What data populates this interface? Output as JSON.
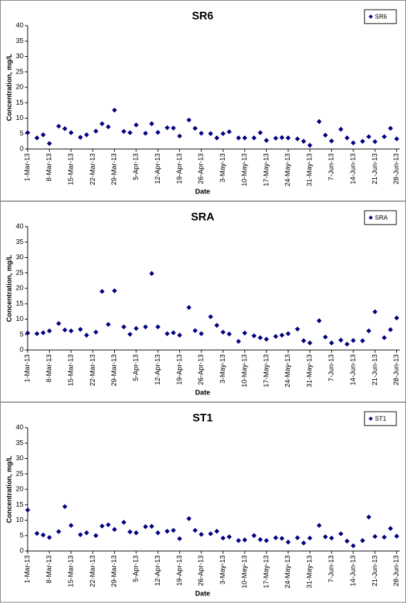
{
  "chart_data": [
    {
      "type": "scatter",
      "title": "SR6",
      "x_label": "Date",
      "y_label": "Concentration, mg/L",
      "legend": "top-right",
      "x": [
        "1-Mar-13",
        "4-Mar-13",
        "6-Mar-13",
        "8-Mar-13",
        "11-Mar-13",
        "13-Mar-13",
        "15-Mar-13",
        "18-Mar-13",
        "20-Mar-13",
        "23-Mar-13",
        "25-Mar-13",
        "27-Mar-13",
        "29-Mar-13",
        "1-Apr-13",
        "3-Apr-13",
        "5-Apr-13",
        "8-Apr-13",
        "10-Apr-13",
        "12-Apr-13",
        "15-Apr-13",
        "17-Apr-13",
        "19-Apr-13",
        "22-Apr-13",
        "24-Apr-13",
        "26-Apr-13",
        "29-Apr-13",
        "1-May-13",
        "3-May-13",
        "5-May-13",
        "8-May-13",
        "10-May-13",
        "13-May-13",
        "15-May-13",
        "17-May-13",
        "20-May-13",
        "22-May-13",
        "24-May-13",
        "27-May-13",
        "29-May-13",
        "31-May-13",
        "3-Jun-13",
        "5-Jun-13",
        "7-Jun-13",
        "10-Jun-13",
        "12-Jun-13",
        "14-Jun-13",
        "17-Jun-13",
        "19-Jun-13",
        "21-Jun-13",
        "24-Jun-13",
        "26-Jun-13",
        "28-Jun-13"
      ],
      "series": [
        {
          "name": "SR6",
          "color": "#000080",
          "values": [
            5.3,
            3.6,
            4.6,
            1.8,
            7.4,
            6.6,
            5.3,
            3.8,
            4.6,
            5.8,
            8.2,
            7.2,
            12.6,
            5.7,
            5.3,
            7.8,
            5.1,
            8.2,
            5.4,
            6.9,
            6.8,
            4.2,
            9.4,
            6.7,
            5.1,
            5.0,
            3.6,
            5.0,
            5.6,
            3.6,
            3.6,
            3.6,
            5.3,
            2.8,
            3.5,
            3.7,
            3.6,
            3.3,
            2.5,
            1.2,
            8.9,
            4.5,
            2.6,
            6.4,
            3.6,
            2.0,
            2.5,
            4.0,
            2.4,
            4.0,
            6.7,
            3.3
          ]
        }
      ],
      "xlim": [
        "1-Mar-13",
        "29-Jun-13"
      ],
      "xticks": [
        "1-Mar-13",
        "8-Mar-13",
        "15-Mar-13",
        "22-Mar-13",
        "29-Mar-13",
        "5-Apr-13",
        "12-Apr-13",
        "19-Apr-13",
        "26-Apr-13",
        "3-May-13",
        "10-May-13",
        "17-May-13",
        "24-May-13",
        "31-May-13",
        "7-Jun-13",
        "14-Jun-13",
        "21-Jun-13",
        "28-Jun-13"
      ],
      "ylim": [
        0,
        40
      ],
      "yticks": [
        0,
        5,
        10,
        15,
        20,
        25,
        30,
        35,
        40
      ]
    },
    {
      "type": "scatter",
      "title": "SRA",
      "x_label": "Date",
      "y_label": "Concentration, mg/L",
      "legend": "top-right",
      "x": [
        "1-Mar-13",
        "4-Mar-13",
        "6-Mar-13",
        "8-Mar-13",
        "11-Mar-13",
        "13-Mar-13",
        "15-Mar-13",
        "18-Mar-13",
        "20-Mar-13",
        "23-Mar-13",
        "25-Mar-13",
        "27-Mar-13",
        "29-Mar-13",
        "1-Apr-13",
        "3-Apr-13",
        "5-Apr-13",
        "8-Apr-13",
        "10-Apr-13",
        "12-Apr-13",
        "15-Apr-13",
        "17-Apr-13",
        "19-Apr-13",
        "22-Apr-13",
        "24-Apr-13",
        "26-Apr-13",
        "29-Apr-13",
        "1-May-13",
        "3-May-13",
        "5-May-13",
        "8-May-13",
        "10-May-13",
        "13-May-13",
        "15-May-13",
        "17-May-13",
        "20-May-13",
        "22-May-13",
        "24-May-13",
        "27-May-13",
        "29-May-13",
        "31-May-13",
        "3-Jun-13",
        "5-Jun-13",
        "7-Jun-13",
        "10-Jun-13",
        "12-Jun-13",
        "14-Jun-13",
        "17-Jun-13",
        "19-Jun-13",
        "21-Jun-13",
        "24-Jun-13",
        "26-Jun-13",
        "28-Jun-13"
      ],
      "series": [
        {
          "name": "SRA",
          "color": "#000080",
          "values": [
            5.5,
            5.3,
            5.6,
            6.2,
            8.6,
            6.5,
            6.2,
            6.7,
            4.8,
            5.8,
            19.0,
            8.3,
            19.2,
            7.5,
            5.1,
            7.0,
            7.5,
            24.8,
            7.5,
            5.3,
            5.6,
            4.8,
            13.8,
            6.3,
            5.3,
            10.8,
            8.0,
            5.8,
            5.2,
            2.8,
            5.5,
            4.6,
            4.0,
            3.5,
            4.4,
            4.8,
            5.3,
            6.8,
            3.0,
            2.3,
            9.5,
            4.2,
            2.3,
            3.2,
            1.9,
            3.1,
            3.0,
            6.2,
            12.4,
            4.0,
            6.6,
            10.4
          ]
        }
      ],
      "xlim": [
        "1-Mar-13",
        "29-Jun-13"
      ],
      "xticks": [
        "1-Mar-13",
        "8-Mar-13",
        "15-Mar-13",
        "22-Mar-13",
        "29-Mar-13",
        "5-Apr-13",
        "12-Apr-13",
        "19-Apr-13",
        "26-Apr-13",
        "3-May-13",
        "10-May-13",
        "17-May-13",
        "24-May-13",
        "31-May-13",
        "7-Jun-13",
        "14-Jun-13",
        "21-Jun-13",
        "28-Jun-13"
      ],
      "ylim": [
        0,
        40
      ],
      "yticks": [
        0,
        5,
        10,
        15,
        20,
        25,
        30,
        35,
        40
      ]
    },
    {
      "type": "scatter",
      "title": "ST1",
      "x_label": "Date",
      "y_label": "Concentration, mg/L",
      "legend": "top-right",
      "x": [
        "1-Mar-13",
        "4-Mar-13",
        "6-Mar-13",
        "8-Mar-13",
        "11-Mar-13",
        "13-Mar-13",
        "15-Mar-13",
        "18-Mar-13",
        "20-Mar-13",
        "23-Mar-13",
        "25-Mar-13",
        "27-Mar-13",
        "29-Mar-13",
        "1-Apr-13",
        "3-Apr-13",
        "5-Apr-13",
        "8-Apr-13",
        "10-Apr-13",
        "12-Apr-13",
        "15-Apr-13",
        "17-Apr-13",
        "19-Apr-13",
        "22-Apr-13",
        "24-Apr-13",
        "26-Apr-13",
        "29-Apr-13",
        "1-May-13",
        "3-May-13",
        "5-May-13",
        "8-May-13",
        "10-May-13",
        "13-May-13",
        "15-May-13",
        "17-May-13",
        "20-May-13",
        "22-May-13",
        "24-May-13",
        "27-May-13",
        "29-May-13",
        "31-May-13",
        "3-Jun-13",
        "5-Jun-13",
        "7-Jun-13",
        "10-Jun-13",
        "12-Jun-13",
        "14-Jun-13",
        "17-Jun-13",
        "19-Jun-13",
        "21-Jun-13",
        "24-Jun-13",
        "26-Jun-13",
        "28-Jun-13"
      ],
      "series": [
        {
          "name": "ST1",
          "color": "#000080",
          "values": [
            13.3,
            5.7,
            5.2,
            4.4,
            6.3,
            14.4,
            8.3,
            5.3,
            5.9,
            5.0,
            8.1,
            8.5,
            7.0,
            9.3,
            6.2,
            5.9,
            7.9,
            8.0,
            5.9,
            6.4,
            6.7,
            4.0,
            10.5,
            6.7,
            5.4,
            5.6,
            6.4,
            4.2,
            4.6,
            3.4,
            3.6,
            5.0,
            3.7,
            3.4,
            4.3,
            4.1,
            2.9,
            4.3,
            2.6,
            4.2,
            8.3,
            4.6,
            4.2,
            5.6,
            3.2,
            1.7,
            3.4,
            11.0,
            4.7,
            4.5,
            7.3,
            4.8
          ]
        }
      ],
      "xlim": [
        "1-Mar-13",
        "29-Jun-13"
      ],
      "xticks": [
        "1-Mar-13",
        "8-Mar-13",
        "15-Mar-13",
        "22-Mar-13",
        "29-Mar-13",
        "5-Apr-13",
        "12-Apr-13",
        "19-Apr-13",
        "26-Apr-13",
        "3-May-13",
        "10-May-13",
        "17-May-13",
        "24-May-13",
        "31-May-13",
        "7-Jun-13",
        "14-Jun-13",
        "21-Jun-13",
        "28-Jun-13"
      ],
      "ylim": [
        0,
        40
      ],
      "yticks": [
        0,
        5,
        10,
        15,
        20,
        25,
        30,
        35,
        40
      ]
    }
  ]
}
